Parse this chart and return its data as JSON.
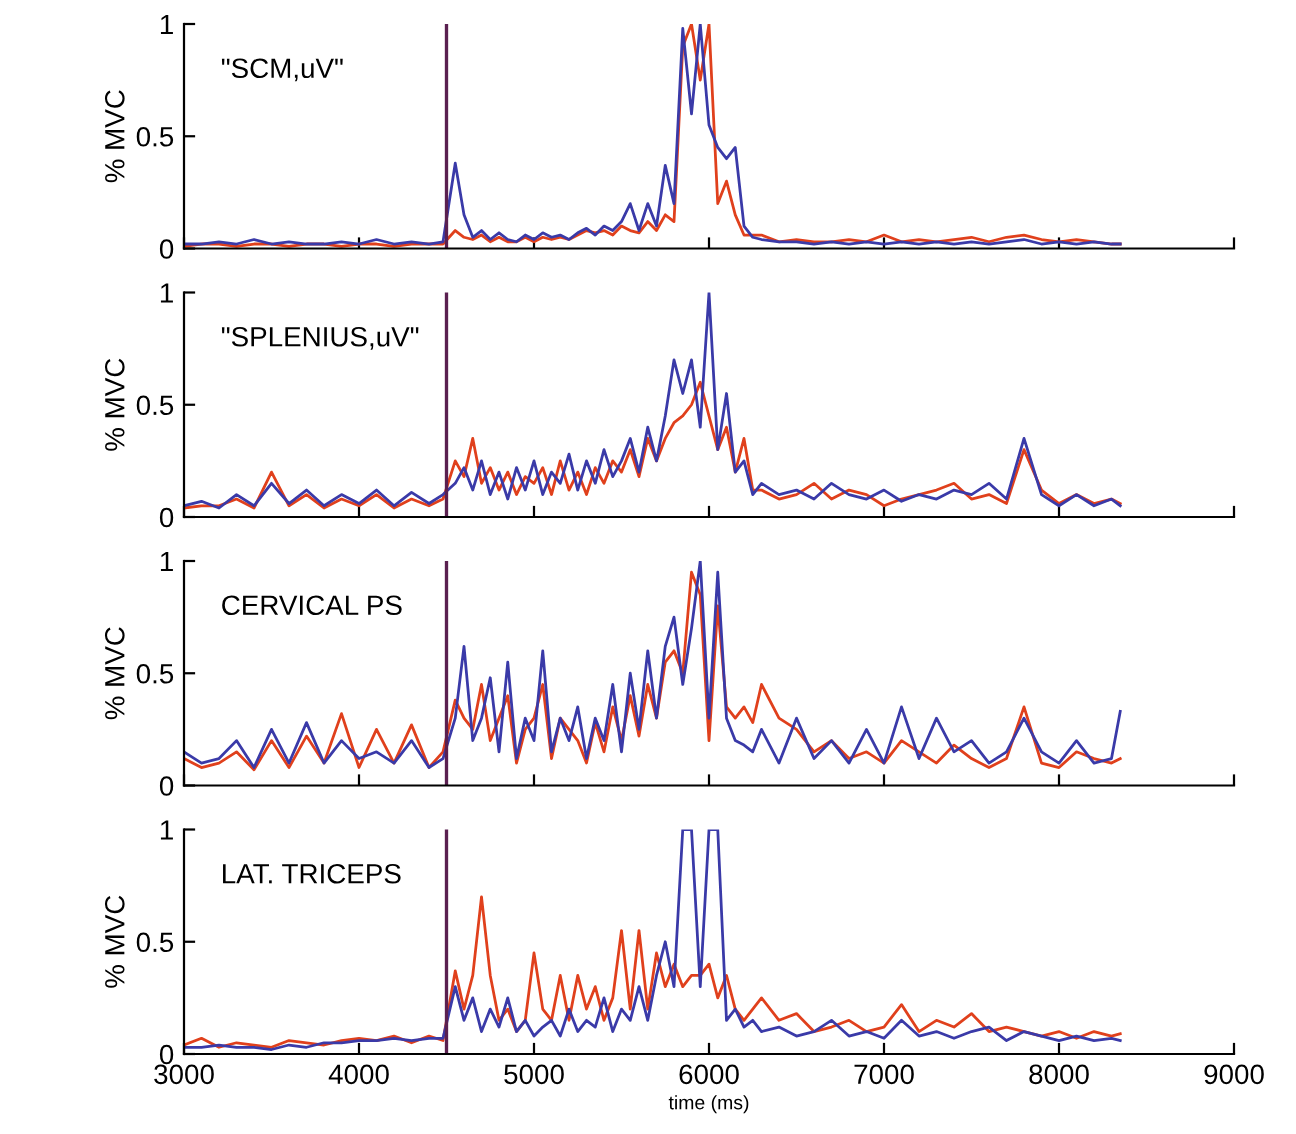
{
  "chart_data": [
    {
      "type": "line",
      "annotations": [
        "\"SCM,uV\""
      ],
      "ylabel": "% MVC",
      "xlim": [
        3000,
        9000
      ],
      "xticks": [
        3000,
        4000,
        5000,
        6000,
        7000,
        8000,
        9000
      ],
      "ylim": [
        0,
        1
      ],
      "yticks": [
        0,
        0.5,
        1
      ],
      "tick_labels": "y",
      "ref_lines": [
        {
          "axis": "x",
          "value": 4500,
          "color": "#5a2050"
        }
      ],
      "x": [
        3000,
        3100,
        3200,
        3300,
        3400,
        3500,
        3600,
        3700,
        3800,
        3900,
        4000,
        4100,
        4200,
        4300,
        4400,
        4480,
        4550,
        4600,
        4650,
        4700,
        4750,
        4800,
        4850,
        4900,
        4950,
        5000,
        5050,
        5100,
        5150,
        5200,
        5250,
        5300,
        5350,
        5400,
        5450,
        5500,
        5550,
        5600,
        5650,
        5700,
        5750,
        5800,
        5850,
        5900,
        5950,
        6000,
        6050,
        6100,
        6150,
        6200,
        6250,
        6300,
        6400,
        6500,
        6600,
        6700,
        6800,
        6900,
        7000,
        7100,
        7200,
        7300,
        7400,
        7500,
        7600,
        7700,
        7800,
        7900,
        8000,
        8100,
        8200,
        8300,
        8350
      ],
      "series": [
        {
          "color": "#e0401c",
          "values": [
            0.01,
            0.02,
            0.02,
            0.01,
            0.02,
            0.02,
            0.01,
            0.02,
            0.02,
            0.01,
            0.02,
            0.02,
            0.01,
            0.02,
            0.02,
            0.02,
            0.08,
            0.05,
            0.04,
            0.06,
            0.03,
            0.05,
            0.03,
            0.03,
            0.05,
            0.03,
            0.05,
            0.04,
            0.05,
            0.04,
            0.06,
            0.08,
            0.07,
            0.08,
            0.06,
            0.1,
            0.08,
            0.07,
            0.12,
            0.08,
            0.15,
            0.12,
            0.9,
            1,
            0.75,
            1,
            0.2,
            0.3,
            0.15,
            0.06,
            0.06,
            0.06,
            0.03,
            0.04,
            0.03,
            0.03,
            0.04,
            0.03,
            0.06,
            0.03,
            0.04,
            0.03,
            0.04,
            0.05,
            0.03,
            0.05,
            0.06,
            0.04,
            0.03,
            0.04,
            0.03,
            0.02,
            0.02
          ]
        },
        {
          "color": "#3a3aa8",
          "values": [
            0.02,
            0.02,
            0.03,
            0.02,
            0.04,
            0.02,
            0.03,
            0.02,
            0.02,
            0.03,
            0.02,
            0.04,
            0.02,
            0.03,
            0.02,
            0.03,
            0.38,
            0.15,
            0.05,
            0.08,
            0.04,
            0.07,
            0.04,
            0.03,
            0.06,
            0.04,
            0.07,
            0.05,
            0.06,
            0.04,
            0.07,
            0.09,
            0.06,
            0.1,
            0.08,
            0.12,
            0.2,
            0.08,
            0.2,
            0.1,
            0.37,
            0.2,
            0.98,
            0.6,
            1,
            0.55,
            0.45,
            0.4,
            0.45,
            0.1,
            0.05,
            0.04,
            0.03,
            0.03,
            0.02,
            0.03,
            0.02,
            0.03,
            0.02,
            0.03,
            0.02,
            0.03,
            0.02,
            0.03,
            0.02,
            0.03,
            0.04,
            0.02,
            0.03,
            0.02,
            0.03,
            0.02,
            0.02
          ]
        }
      ]
    },
    {
      "type": "line",
      "annotations": [
        "\"SPLENIUS,uV\""
      ],
      "ylabel": "% MVC",
      "xlim": [
        3000,
        9000
      ],
      "xticks": [
        3000,
        4000,
        5000,
        6000,
        7000,
        8000,
        9000
      ],
      "ylim": [
        0,
        1
      ],
      "yticks": [
        0,
        0.5,
        1
      ],
      "tick_labels": "y",
      "ref_lines": [
        {
          "axis": "x",
          "value": 4500,
          "color": "#5a2050"
        }
      ],
      "x": [
        3000,
        3100,
        3200,
        3300,
        3400,
        3500,
        3600,
        3700,
        3800,
        3900,
        4000,
        4100,
        4200,
        4300,
        4400,
        4480,
        4550,
        4600,
        4650,
        4700,
        4750,
        4800,
        4850,
        4900,
        4950,
        5000,
        5050,
        5100,
        5150,
        5200,
        5250,
        5300,
        5350,
        5400,
        5450,
        5500,
        5550,
        5600,
        5650,
        5700,
        5750,
        5800,
        5850,
        5900,
        5950,
        6000,
        6050,
        6100,
        6150,
        6200,
        6250,
        6300,
        6400,
        6500,
        6600,
        6700,
        6800,
        6900,
        7000,
        7100,
        7200,
        7300,
        7400,
        7500,
        7600,
        7700,
        7800,
        7900,
        8000,
        8100,
        8200,
        8300,
        8350
      ],
      "series": [
        {
          "color": "#e0401c",
          "values": [
            0.04,
            0.05,
            0.05,
            0.08,
            0.04,
            0.2,
            0.05,
            0.1,
            0.04,
            0.08,
            0.05,
            0.1,
            0.04,
            0.08,
            0.05,
            0.08,
            0.25,
            0.18,
            0.35,
            0.15,
            0.22,
            0.12,
            0.2,
            0.1,
            0.18,
            0.15,
            0.22,
            0.1,
            0.25,
            0.12,
            0.2,
            0.1,
            0.22,
            0.15,
            0.25,
            0.2,
            0.3,
            0.18,
            0.35,
            0.25,
            0.35,
            0.42,
            0.45,
            0.5,
            0.6,
            0.45,
            0.3,
            0.4,
            0.2,
            0.35,
            0.12,
            0.12,
            0.08,
            0.1,
            0.15,
            0.08,
            0.12,
            0.1,
            0.05,
            0.08,
            0.1,
            0.12,
            0.15,
            0.08,
            0.1,
            0.06,
            0.3,
            0.12,
            0.06,
            0.1,
            0.06,
            0.08,
            0.06
          ]
        },
        {
          "color": "#3a3aa8",
          "values": [
            0.05,
            0.07,
            0.04,
            0.1,
            0.05,
            0.15,
            0.06,
            0.12,
            0.05,
            0.1,
            0.06,
            0.12,
            0.05,
            0.11,
            0.06,
            0.1,
            0.15,
            0.22,
            0.12,
            0.25,
            0.1,
            0.2,
            0.08,
            0.22,
            0.12,
            0.25,
            0.1,
            0.2,
            0.15,
            0.28,
            0.12,
            0.25,
            0.15,
            0.3,
            0.18,
            0.25,
            0.35,
            0.2,
            0.4,
            0.25,
            0.45,
            0.7,
            0.55,
            0.7,
            0.4,
            1,
            0.3,
            0.55,
            0.2,
            0.25,
            0.1,
            0.15,
            0.1,
            0.12,
            0.08,
            0.15,
            0.1,
            0.08,
            0.12,
            0.07,
            0.1,
            0.08,
            0.12,
            0.1,
            0.15,
            0.08,
            0.35,
            0.1,
            0.05,
            0.1,
            0.05,
            0.08,
            0.05
          ]
        }
      ]
    },
    {
      "type": "line",
      "annotations": [
        "CERVICAL PS"
      ],
      "ylabel": "% MVC",
      "xlim": [
        3000,
        9000
      ],
      "xticks": [
        3000,
        4000,
        5000,
        6000,
        7000,
        8000,
        9000
      ],
      "ylim": [
        0,
        1
      ],
      "yticks": [
        0,
        0.5,
        1
      ],
      "tick_labels": "y",
      "ref_lines": [
        {
          "axis": "x",
          "value": 4500,
          "color": "#5a2050"
        }
      ],
      "x": [
        3000,
        3100,
        3200,
        3300,
        3400,
        3500,
        3600,
        3700,
        3800,
        3900,
        4000,
        4100,
        4200,
        4300,
        4400,
        4480,
        4550,
        4600,
        4650,
        4700,
        4750,
        4800,
        4850,
        4900,
        4950,
        5000,
        5050,
        5100,
        5150,
        5200,
        5250,
        5300,
        5350,
        5400,
        5450,
        5500,
        5550,
        5600,
        5650,
        5700,
        5750,
        5800,
        5850,
        5900,
        5950,
        6000,
        6050,
        6100,
        6150,
        6200,
        6250,
        6300,
        6400,
        6500,
        6600,
        6700,
        6800,
        6900,
        7000,
        7100,
        7200,
        7300,
        7400,
        7500,
        7600,
        7700,
        7800,
        7900,
        8000,
        8100,
        8200,
        8300,
        8350
      ],
      "series": [
        {
          "color": "#e0401c",
          "values": [
            0.12,
            0.08,
            0.1,
            0.15,
            0.07,
            0.2,
            0.08,
            0.22,
            0.1,
            0.32,
            0.08,
            0.25,
            0.1,
            0.27,
            0.08,
            0.15,
            0.38,
            0.3,
            0.25,
            0.45,
            0.2,
            0.3,
            0.4,
            0.1,
            0.25,
            0.3,
            0.45,
            0.12,
            0.3,
            0.25,
            0.2,
            0.1,
            0.28,
            0.15,
            0.35,
            0.2,
            0.4,
            0.22,
            0.45,
            0.3,
            0.55,
            0.6,
            0.5,
            0.95,
            0.85,
            0.2,
            0.8,
            0.35,
            0.3,
            0.35,
            0.28,
            0.45,
            0.3,
            0.25,
            0.15,
            0.2,
            0.12,
            0.15,
            0.1,
            0.2,
            0.15,
            0.1,
            0.18,
            0.12,
            0.08,
            0.12,
            0.35,
            0.1,
            0.08,
            0.15,
            0.12,
            0.1,
            0.12
          ]
        },
        {
          "color": "#3a3aa8",
          "values": [
            0.15,
            0.1,
            0.12,
            0.2,
            0.08,
            0.25,
            0.1,
            0.28,
            0.1,
            0.2,
            0.12,
            0.15,
            0.1,
            0.2,
            0.08,
            0.12,
            0.3,
            0.62,
            0.2,
            0.3,
            0.48,
            0.15,
            0.55,
            0.12,
            0.3,
            0.2,
            0.6,
            0.15,
            0.3,
            0.2,
            0.35,
            0.12,
            0.3,
            0.2,
            0.45,
            0.15,
            0.5,
            0.25,
            0.6,
            0.3,
            0.62,
            0.75,
            0.45,
            0.7,
            1,
            0.3,
            0.95,
            0.3,
            0.2,
            0.18,
            0.15,
            0.25,
            0.1,
            0.3,
            0.12,
            0.2,
            0.1,
            0.25,
            0.1,
            0.35,
            0.12,
            0.3,
            0.15,
            0.2,
            0.1,
            0.15,
            0.3,
            0.15,
            0.1,
            0.2,
            0.1,
            0.12,
            0.33
          ]
        }
      ]
    },
    {
      "type": "line",
      "annotations": [
        "LAT. TRICEPS"
      ],
      "ylabel": "% MVC",
      "xlabel": "time (ms)",
      "xlim": [
        3000,
        9000
      ],
      "xticks": [
        3000,
        4000,
        5000,
        6000,
        7000,
        8000,
        9000
      ],
      "ylim": [
        0,
        1
      ],
      "yticks": [
        0,
        0.5,
        1
      ],
      "ref_lines": [
        {
          "axis": "x",
          "value": 4500,
          "color": "#5a2050"
        }
      ],
      "x": [
        3000,
        3100,
        3200,
        3300,
        3400,
        3500,
        3600,
        3700,
        3800,
        3900,
        4000,
        4100,
        4200,
        4300,
        4400,
        4480,
        4550,
        4600,
        4650,
        4700,
        4750,
        4800,
        4850,
        4900,
        4950,
        5000,
        5050,
        5100,
        5150,
        5200,
        5250,
        5300,
        5350,
        5400,
        5450,
        5500,
        5550,
        5600,
        5650,
        5700,
        5750,
        5800,
        5850,
        5900,
        5950,
        6000,
        6050,
        6100,
        6150,
        6200,
        6250,
        6300,
        6400,
        6500,
        6600,
        6700,
        6800,
        6900,
        7000,
        7100,
        7200,
        7300,
        7400,
        7500,
        7600,
        7700,
        7800,
        7900,
        8000,
        8100,
        8200,
        8300,
        8350
      ],
      "series": [
        {
          "color": "#e0401c",
          "values": [
            0.04,
            0.07,
            0.03,
            0.05,
            0.04,
            0.03,
            0.06,
            0.05,
            0.04,
            0.06,
            0.07,
            0.06,
            0.08,
            0.05,
            0.08,
            0.06,
            0.37,
            0.2,
            0.35,
            0.7,
            0.35,
            0.15,
            0.2,
            0.1,
            0.15,
            0.45,
            0.2,
            0.15,
            0.35,
            0.15,
            0.35,
            0.2,
            0.3,
            0.15,
            0.25,
            0.55,
            0.2,
            0.55,
            0.2,
            0.45,
            0.3,
            0.4,
            0.3,
            0.35,
            0.35,
            0.4,
            0.25,
            0.35,
            0.2,
            0.15,
            0.2,
            0.25,
            0.15,
            0.18,
            0.1,
            0.12,
            0.15,
            0.1,
            0.12,
            0.22,
            0.1,
            0.15,
            0.12,
            0.18,
            0.1,
            0.12,
            0.1,
            0.08,
            0.1,
            0.07,
            0.1,
            0.08,
            0.09
          ]
        },
        {
          "color": "#3a3aa8",
          "values": [
            0.03,
            0.03,
            0.04,
            0.03,
            0.03,
            0.02,
            0.04,
            0.03,
            0.05,
            0.05,
            0.06,
            0.06,
            0.07,
            0.06,
            0.07,
            0.07,
            0.3,
            0.15,
            0.25,
            0.1,
            0.2,
            0.12,
            0.25,
            0.1,
            0.15,
            0.08,
            0.12,
            0.15,
            0.08,
            0.2,
            0.1,
            0.15,
            0.12,
            0.25,
            0.1,
            0.2,
            0.15,
            0.3,
            0.15,
            0.35,
            0.5,
            0.3,
            1,
            1,
            0.3,
            1,
            1,
            0.15,
            0.2,
            0.12,
            0.15,
            0.1,
            0.12,
            0.08,
            0.1,
            0.15,
            0.08,
            0.1,
            0.07,
            0.15,
            0.08,
            0.1,
            0.07,
            0.1,
            0.12,
            0.06,
            0.1,
            0.08,
            0.06,
            0.08,
            0.06,
            0.07,
            0.06
          ]
        }
      ]
    }
  ]
}
